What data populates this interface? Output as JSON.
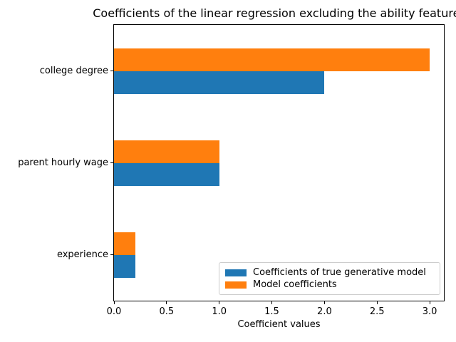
{
  "chart_data": {
    "type": "bar",
    "orientation": "horizontal",
    "title": "Coefficients of the linear regression excluding the ability features",
    "xlabel": "Coefficient values",
    "categories": [
      "college degree",
      "parent hourly wage",
      "experience"
    ],
    "series": [
      {
        "name": "Coefficients of true generative model",
        "color": "#1f77b4",
        "values": [
          2.0,
          1.0,
          0.2
        ]
      },
      {
        "name": "Model coefficients",
        "color": "#ff7f0e",
        "values": [
          3.0,
          1.0,
          0.2
        ]
      }
    ],
    "x_ticks": [
      0.0,
      0.5,
      1.0,
      1.5,
      2.0,
      2.5,
      3.0
    ],
    "xlim": [
      0,
      3.135
    ],
    "grid": false,
    "legend_position": "lower right",
    "frame_color": "#000000",
    "background_color": "#ffffff"
  }
}
